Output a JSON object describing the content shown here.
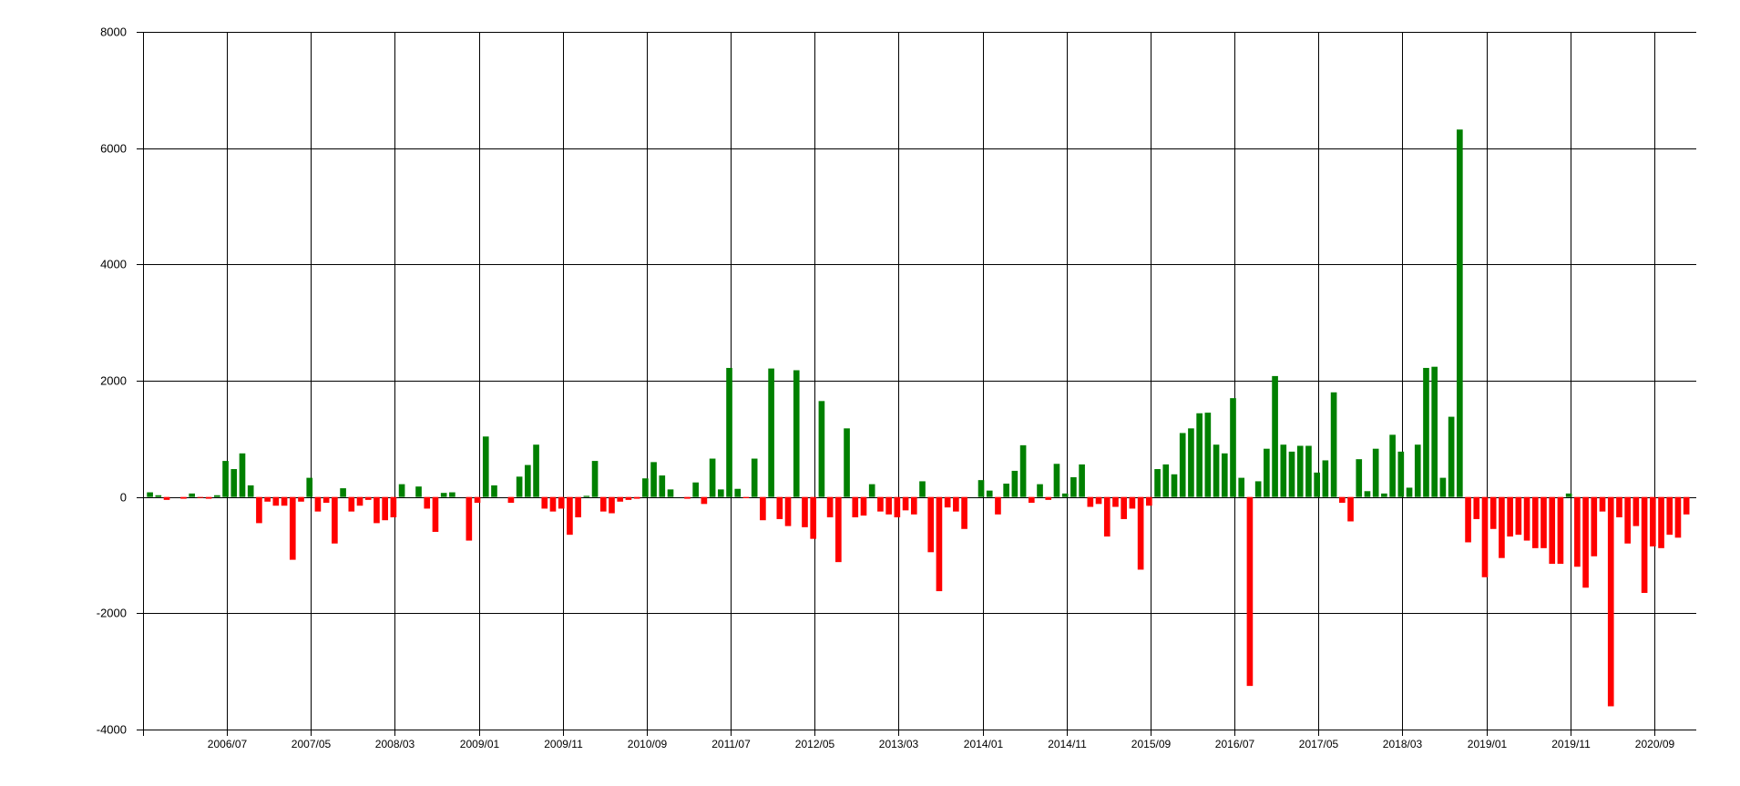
{
  "chart_data": {
    "type": "bar",
    "title": "",
    "xlabel": "",
    "ylabel": "",
    "ylim": [
      -4000,
      8000
    ],
    "yticks": [
      -4000,
      -2000,
      0,
      2000,
      4000,
      6000,
      8000
    ],
    "xticks": [
      "2006/07",
      "2007/05",
      "2008/03",
      "2009/01",
      "2009/11",
      "2010/09",
      "2011/07",
      "2012/05",
      "2013/03",
      "2014/01",
      "2014/11",
      "2015/09",
      "2016/07",
      "2017/05",
      "2018/03",
      "2019/01",
      "2019/11",
      "2020/09"
    ],
    "grid": true,
    "legend": "none",
    "x_start": "2005/09",
    "x_end": "2021/02",
    "positive_color": "#008000",
    "negative_color": "#ff0000",
    "values": [
      80,
      30,
      -50,
      0,
      -30,
      60,
      -10,
      -30,
      30,
      620,
      480,
      750,
      200,
      -450,
      -80,
      -150,
      -150,
      -1080,
      -80,
      330,
      -250,
      -100,
      -800,
      150,
      -250,
      -150,
      -50,
      -450,
      -400,
      -350,
      220,
      0,
      180,
      -200,
      -600,
      70,
      80,
      0,
      -750,
      -100,
      1040,
      200,
      0,
      -100,
      350,
      550,
      900,
      -200,
      -250,
      -200,
      -650,
      -350,
      20,
      620,
      -250,
      -280,
      -80,
      -50,
      -30,
      320,
      600,
      370,
      130,
      0,
      -30,
      250,
      -120,
      660,
      130,
      2220,
      140,
      -20,
      660,
      -400,
      2210,
      -380,
      -500,
      2180,
      -520,
      -720,
      1650,
      -350,
      -1120,
      1180,
      -350,
      -320,
      220,
      -250,
      -300,
      -350,
      -230,
      -300,
      270,
      -950,
      -1620,
      -180,
      -250,
      -550,
      0,
      290,
      110,
      -300,
      230,
      450,
      890,
      -100,
      220,
      -50,
      570,
      60,
      340,
      560,
      -170,
      -120,
      -680,
      -170,
      -380,
      -200,
      -1250,
      -150,
      480,
      560,
      390,
      1100,
      1180,
      1440,
      1450,
      900,
      750,
      1700,
      330,
      -3250,
      270,
      830,
      2080,
      900,
      780,
      880,
      880,
      420,
      630,
      1800,
      -100,
      -420,
      650,
      100,
      830,
      60,
      1070,
      780,
      160,
      900,
      2220,
      2240,
      330,
      1380,
      6320,
      -780,
      -380,
      -1380,
      -550,
      -1050,
      -680,
      -650,
      -750,
      -880,
      -880,
      -1150,
      -1150,
      60,
      -1200,
      -1560,
      -1020,
      -250,
      -3600,
      -350,
      -800,
      -500,
      -1650,
      -850,
      -880,
      -650,
      -700,
      -300
    ]
  }
}
